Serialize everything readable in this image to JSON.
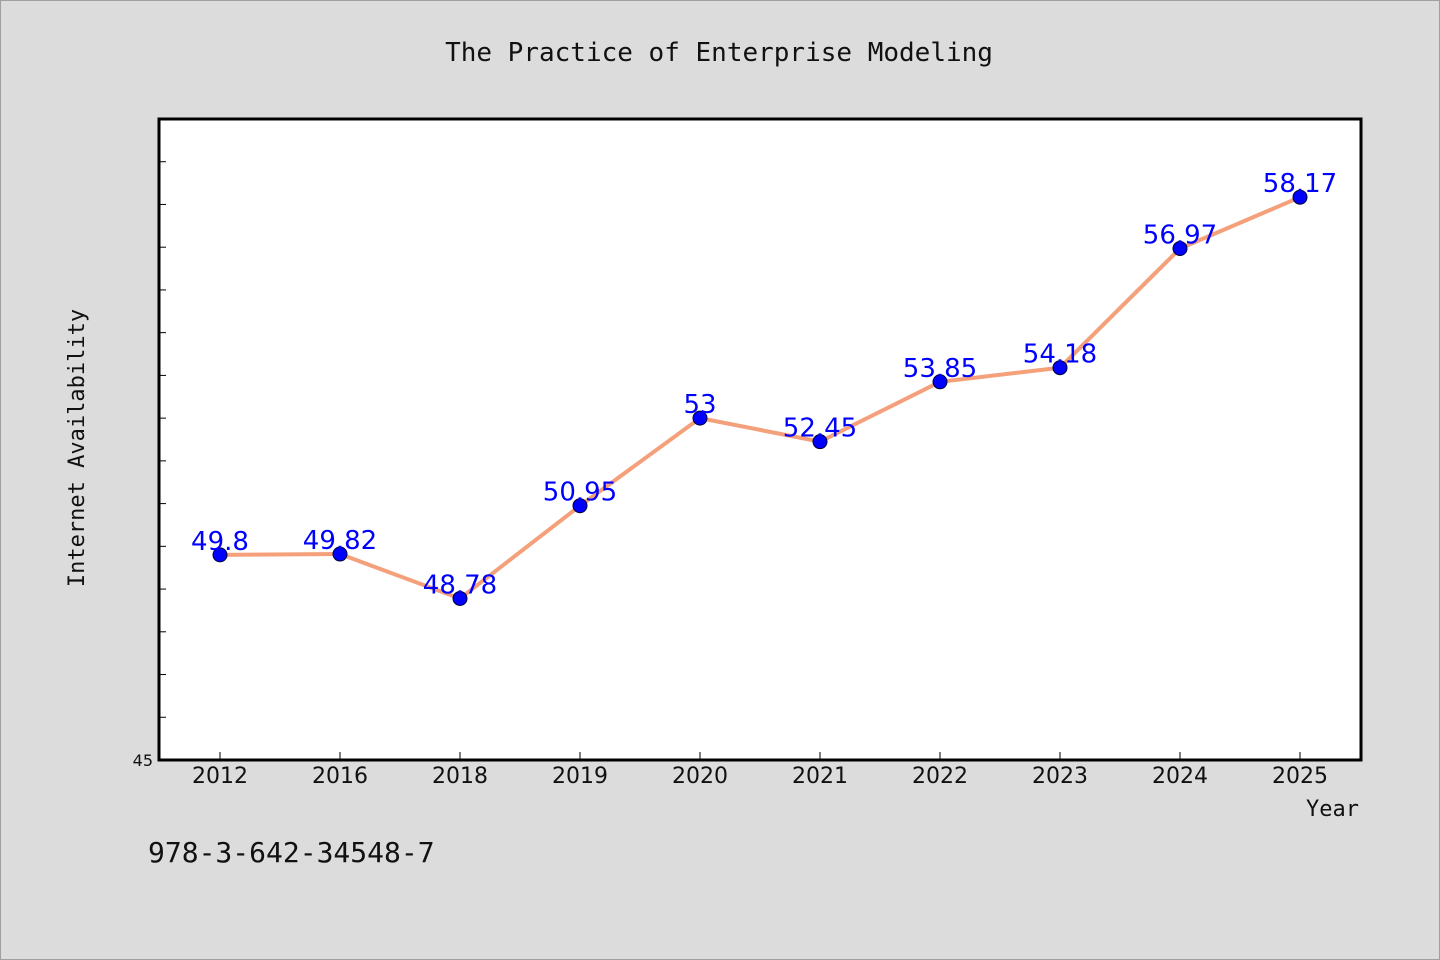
{
  "chart_data": {
    "type": "line",
    "title": "The Practice of Enterprise Modeling",
    "xlabel": "Year",
    "ylabel": "Internet Availability",
    "categories": [
      "2012",
      "2016",
      "2018",
      "2019",
      "2020",
      "2021",
      "2022",
      "2023",
      "2024",
      "2025"
    ],
    "series": [
      {
        "values": [
          49.8,
          49.82,
          48.78,
          50.95,
          53,
          52.45,
          53.85,
          54.18,
          56.97,
          58.17
        ],
        "data_labels": [
          "49.8",
          "49.82",
          "48.78",
          "50.95",
          "53",
          "52.45",
          "53.85",
          "54.18",
          "56.97",
          "58.17"
        ]
      }
    ],
    "ylim": [
      45,
      60
    ],
    "y_tick_labels": [
      "45"
    ],
    "grid": false,
    "line_color": "#f4a07a",
    "marker_color": "#0000ff",
    "label_color": "#0000ff"
  },
  "footer": {
    "isbn": "978-3-642-34548-7"
  }
}
